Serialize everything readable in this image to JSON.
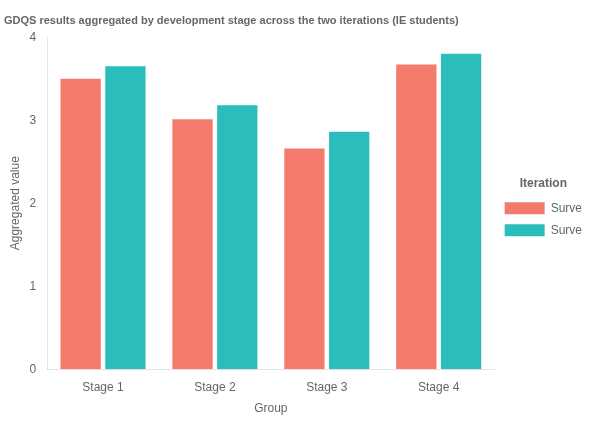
{
  "chart_data": {
    "type": "bar",
    "title": "GDQS results aggregated by development stage across the two iterations (IE students)",
    "x_label": "Group",
    "y_label": "Aggregated value",
    "legend_title": "Iteration",
    "categories": [
      "Stage 1",
      "Stage 2",
      "Stage 3",
      "Stage 4"
    ],
    "series": [
      {
        "name": "Surve",
        "color": "#F47B6B",
        "values": [
          3.5,
          3.01,
          2.66,
          3.67
        ]
      },
      {
        "name": "Surve",
        "color": "#2BBCBC",
        "values": [
          3.65,
          3.18,
          2.86,
          3.8
        ]
      }
    ],
    "ylim": [
      0,
      4
    ],
    "yticks": [
      0,
      1,
      2,
      3,
      4
    ],
    "grid": false,
    "legend": "right"
  }
}
